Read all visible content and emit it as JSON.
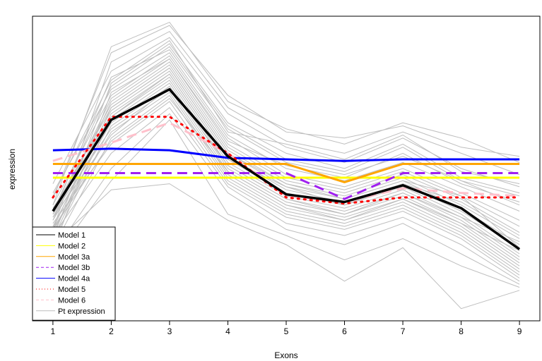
{
  "chart_data": {
    "type": "line",
    "xlabel": "Exons",
    "ylabel": "expression",
    "x": [
      1,
      2,
      3,
      4,
      5,
      6,
      7,
      8,
      9
    ],
    "xlim": [
      0.65,
      9.35
    ],
    "ylim": [
      0,
      100
    ],
    "y_ticks_shown": false,
    "grid": false,
    "legend_position": "bottom-left",
    "series": [
      {
        "name": "Model 1",
        "color": "#000000",
        "dash": "solid",
        "width": 3.5,
        "values": [
          36,
          66,
          76,
          54,
          41.5,
          39,
          44.5,
          37,
          23.5
        ]
      },
      {
        "name": "Model 2",
        "color": "#FFFF00",
        "dash": "solid",
        "width": 3,
        "values": [
          47,
          47,
          47,
          47,
          47,
          47,
          47,
          47,
          47
        ]
      },
      {
        "name": "Model 3a",
        "color": "#FFA500",
        "dash": "solid",
        "width": 3,
        "values": [
          51.5,
          51.5,
          51.5,
          51.5,
          51.5,
          45.5,
          51.5,
          51.5,
          51.5
        ]
      },
      {
        "name": "Model 3b",
        "color": "#A020F0",
        "dash": "dashed",
        "width": 3,
        "values": [
          48.5,
          48.5,
          48.5,
          48.5,
          48.5,
          40,
          48.5,
          48.5,
          48.5
        ]
      },
      {
        "name": "Model 4a",
        "color": "#0000FF",
        "dash": "solid",
        "width": 3,
        "values": [
          56,
          56.5,
          56,
          53.5,
          53,
          52.5,
          53,
          53,
          53
        ]
      },
      {
        "name": "Model 5",
        "color": "#FF0000",
        "dash": "dotted",
        "width": 3,
        "values": [
          40.5,
          67,
          67,
          55,
          40.5,
          38.5,
          40.5,
          40.5,
          40.5
        ]
      },
      {
        "name": "Model 6",
        "color": "#FFC0CB",
        "dash": "dashed",
        "width": 3,
        "values": [
          52.5,
          58.5,
          65,
          55,
          41,
          39,
          43.5,
          42,
          41
        ]
      },
      {
        "name": "Pt expression",
        "color": "#BEBEBE",
        "dash": "solid",
        "width": 1,
        "values": [
          36,
          70,
          83,
          55,
          45,
          40,
          46,
          41,
          24
        ]
      }
    ],
    "background_curves": [
      [
        40,
        88,
        97,
        74,
        62,
        60,
        64,
        57,
        54
      ],
      [
        30,
        85,
        95,
        70,
        59,
        55,
        62,
        55,
        48
      ],
      [
        45,
        82,
        93,
        68,
        57,
        52,
        60,
        50,
        44
      ],
      [
        27,
        78,
        91,
        65,
        55,
        50,
        58,
        47,
        42
      ],
      [
        35,
        80,
        89,
        63,
        52,
        48,
        54,
        46,
        38
      ],
      [
        42,
        76,
        88,
        61,
        50,
        46,
        52,
        44,
        36
      ],
      [
        38,
        74,
        87,
        60,
        48,
        44,
        50,
        42,
        33
      ],
      [
        33,
        73,
        86,
        58,
        47,
        43,
        49,
        41,
        31
      ],
      [
        30,
        72,
        85,
        57,
        46,
        42,
        48,
        40,
        29
      ],
      [
        36,
        71,
        84,
        56,
        45,
        41,
        47,
        38,
        27
      ],
      [
        28,
        70,
        83,
        55,
        44,
        40,
        46,
        37,
        25
      ],
      [
        34,
        69,
        82,
        54,
        43,
        39,
        45,
        36,
        24
      ],
      [
        31,
        68,
        81,
        53,
        42,
        38,
        44,
        35,
        22
      ],
      [
        37,
        67,
        80,
        52,
        41,
        37,
        43,
        34,
        21
      ],
      [
        29,
        66,
        79,
        51,
        40,
        36,
        42,
        33,
        20
      ],
      [
        33,
        65,
        78,
        50,
        39,
        35,
        41,
        32,
        19
      ],
      [
        26,
        64,
        77,
        49,
        38,
        34,
        40,
        31,
        18
      ],
      [
        35,
        63,
        76,
        48,
        37,
        33,
        39,
        30,
        17
      ],
      [
        30,
        62,
        75,
        47,
        36,
        32,
        38,
        29,
        16
      ],
      [
        24,
        60,
        74,
        46,
        35,
        31,
        37,
        28,
        15
      ],
      [
        32,
        58,
        72,
        45,
        34,
        30,
        36,
        27,
        14
      ],
      [
        28,
        55,
        70,
        44,
        32,
        28,
        34,
        25,
        13
      ],
      [
        22,
        50,
        68,
        42,
        30,
        25,
        32,
        22,
        12
      ],
      [
        20,
        46,
        66,
        35,
        28,
        20,
        27,
        18,
        11
      ],
      [
        25,
        43,
        45,
        33,
        25,
        13,
        24,
        4,
        10
      ],
      [
        38,
        90,
        98,
        72,
        63,
        58,
        65,
        60,
        52
      ],
      [
        41,
        79,
        92,
        62,
        58,
        53,
        61,
        49,
        45
      ],
      [
        23,
        75,
        86,
        59,
        51,
        47,
        55,
        45,
        39
      ],
      [
        36,
        77,
        90,
        64,
        53,
        49,
        57,
        46,
        41
      ],
      [
        27,
        67,
        81,
        53,
        44,
        38,
        45,
        39,
        28
      ],
      [
        34,
        61,
        77,
        51,
        40,
        35,
        42,
        34,
        26
      ],
      [
        30,
        59,
        73,
        49,
        38,
        33,
        40,
        32,
        23
      ]
    ]
  }
}
